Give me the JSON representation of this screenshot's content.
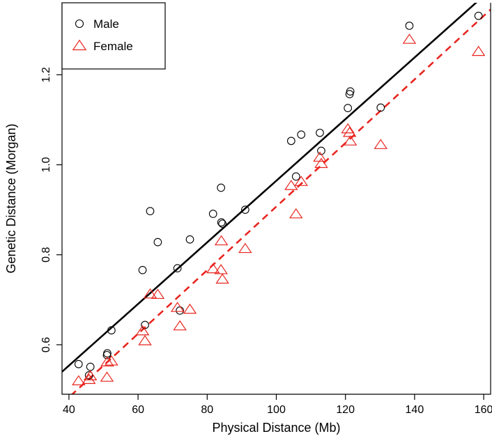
{
  "chart_data": {
    "type": "scatter",
    "xlabel": "Physical Distance (Mb)",
    "ylabel": "Genetic Distance (Morgan)",
    "xlim": [
      38,
      162
    ],
    "ylim": [
      0.49,
      1.36
    ],
    "x_ticks": [
      40,
      60,
      80,
      100,
      120,
      140,
      160
    ],
    "y_ticks": [
      0.6,
      0.8,
      1.0,
      1.2
    ],
    "x_tick_labels": [
      "40",
      "60",
      "80",
      "100",
      "120",
      "140",
      "160"
    ],
    "y_tick_labels": [
      "0.6",
      "0.8",
      "1.0",
      "1.2"
    ],
    "grid": false,
    "legend_position": "top-left",
    "series": [
      {
        "name": "Male",
        "marker": "circle",
        "color": "#000000",
        "points": [
          [
            42.8,
            0.557
          ],
          [
            45.8,
            0.532
          ],
          [
            46.2,
            0.551
          ],
          [
            51.0,
            0.577
          ],
          [
            51.1,
            0.581
          ],
          [
            52.3,
            0.632
          ],
          [
            61.3,
            0.766
          ],
          [
            62.0,
            0.644
          ],
          [
            63.5,
            0.897
          ],
          [
            65.7,
            0.828
          ],
          [
            71.4,
            0.77
          ],
          [
            72.1,
            0.676
          ],
          [
            75.0,
            0.834
          ],
          [
            81.7,
            0.891
          ],
          [
            84.0,
            0.949
          ],
          [
            84.1,
            0.872
          ],
          [
            84.4,
            0.869
          ],
          [
            91.0,
            0.9
          ],
          [
            104.3,
            1.053
          ],
          [
            105.7,
            0.974
          ],
          [
            107.2,
            1.067
          ],
          [
            112.6,
            1.071
          ],
          [
            113.0,
            1.031
          ],
          [
            120.7,
            1.126
          ],
          [
            121.2,
            1.157
          ],
          [
            121.4,
            1.163
          ],
          [
            130.2,
            1.127
          ],
          [
            138.5,
            1.309
          ],
          [
            158.5,
            1.331
          ]
        ],
        "fit_line": {
          "style": "solid",
          "x": [
            38,
            162
          ],
          "y": [
            0.54,
            1.389
          ]
        }
      },
      {
        "name": "Female",
        "marker": "triangle",
        "color": "#e8251f",
        "points": [
          [
            42.8,
            0.519
          ],
          [
            45.8,
            0.522
          ],
          [
            46.2,
            0.53
          ],
          [
            51.0,
            0.527
          ],
          [
            51.1,
            0.561
          ],
          [
            52.3,
            0.563
          ],
          [
            61.3,
            0.63
          ],
          [
            62.0,
            0.608
          ],
          [
            63.5,
            0.712
          ],
          [
            65.7,
            0.711
          ],
          [
            71.4,
            0.682
          ],
          [
            72.1,
            0.641
          ],
          [
            75.0,
            0.678
          ],
          [
            81.7,
            0.768
          ],
          [
            84.0,
            0.766
          ],
          [
            84.1,
            0.83
          ],
          [
            84.4,
            0.745
          ],
          [
            91.0,
            0.813
          ],
          [
            104.3,
            0.953
          ],
          [
            105.7,
            0.89
          ],
          [
            107.2,
            0.962
          ],
          [
            112.6,
            1.016
          ],
          [
            113.0,
            1.002
          ],
          [
            120.7,
            1.079
          ],
          [
            121.2,
            1.071
          ],
          [
            121.4,
            1.052
          ],
          [
            130.2,
            1.044
          ],
          [
            138.5,
            1.278
          ],
          [
            158.5,
            1.251
          ]
        ],
        "fit_line": {
          "style": "dashed",
          "x": [
            38,
            162
          ],
          "y": [
            0.469,
            1.345
          ]
        }
      }
    ]
  }
}
